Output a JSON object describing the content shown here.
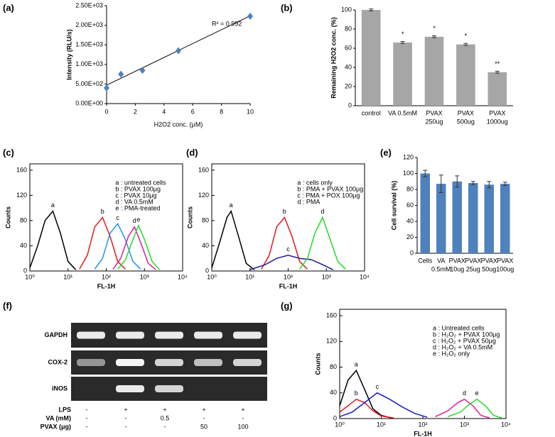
{
  "chart_data": [
    {
      "panel": "(a)",
      "type": "scatter",
      "x_label": "H2O2 conc. (μM)",
      "y_label": "Intensity (RLU/s)",
      "annotation": "R² = 0.992",
      "color": "#4f81bd",
      "x": [
        0,
        1,
        2.5,
        5,
        10
      ],
      "values": [
        400,
        750,
        850,
        1350,
        2230
      ],
      "trendline": {
        "x": [
          0,
          10
        ],
        "values": [
          470,
          2240
        ]
      },
      "xlim": [
        0,
        10
      ],
      "ylim": [
        0,
        2500
      ],
      "xticks": [
        0,
        2,
        4,
        6,
        8,
        10
      ],
      "yticks": [
        {
          "value": 0,
          "label": "0.00E+00"
        },
        {
          "value": 500,
          "label": "5.00E+02"
        },
        {
          "value": 1000,
          "label": "1.00E+03"
        },
        {
          "value": 1500,
          "label": "1.50E+03"
        },
        {
          "value": 2000,
          "label": "2.00E+03"
        },
        {
          "value": 2500,
          "label": "2.50E+03"
        }
      ]
    },
    {
      "panel": "(b)",
      "type": "bar",
      "y_label": "Remaining H2O2 conc. (%)",
      "color": "#a6a6a6",
      "categories": [
        [
          "control"
        ],
        [
          "VA 0.5mM"
        ],
        [
          "PVAX",
          "250ug"
        ],
        [
          "PVAX",
          "500ug"
        ],
        [
          "PVAX",
          "1000ug"
        ]
      ],
      "values": [
        100,
        66,
        72,
        64,
        35
      ],
      "errors": [
        1,
        1,
        1,
        1,
        1
      ],
      "significance": [
        null,
        "*",
        "*",
        "*",
        "**"
      ],
      "ylim": [
        0,
        100
      ],
      "yticks": [
        0,
        20,
        40,
        60,
        80,
        100
      ]
    },
    {
      "panel": "(c)",
      "type": "histogram",
      "x_label": "FL-1H",
      "y_label": "Counts",
      "log_x": true,
      "xlim": [
        1,
        10000
      ],
      "ylim": [
        0,
        170
      ],
      "yticks": [
        0,
        40,
        80,
        120,
        160
      ],
      "xticks": [
        {
          "value": 1,
          "label": "10⁰"
        },
        {
          "value": 10,
          "label": "10¹"
        },
        {
          "value": 100,
          "label": "10²"
        },
        {
          "value": 1000,
          "label": "10³"
        },
        {
          "value": 10000,
          "label": "10⁴"
        }
      ],
      "series": [
        {
          "label": "a",
          "name": "a : untreated cells",
          "color": "#000000",
          "x": [
            1,
            1.6,
            2.5,
            4,
            6.3,
            10,
            16
          ],
          "values": [
            5,
            40,
            80,
            95,
            60,
            15,
            2
          ]
        },
        {
          "label": "b",
          "name": "b : PVAX 100μg",
          "color": "#e41a1c",
          "x": [
            20,
            32,
            50,
            80,
            126,
            200,
            316
          ],
          "values": [
            3,
            25,
            70,
            85,
            55,
            15,
            3
          ]
        },
        {
          "label": "c",
          "name": "c : PVAX 10μg",
          "color": "#1e90ff",
          "x": [
            50,
            80,
            126,
            200,
            316,
            500,
            800
          ],
          "values": [
            3,
            20,
            60,
            75,
            50,
            15,
            3
          ]
        },
        {
          "label": "d",
          "name": "d : VA 0.5mM",
          "color": "#e0209a",
          "x": [
            150,
            240,
            380,
            550,
            800,
            1260,
            2000
          ],
          "values": [
            3,
            20,
            55,
            70,
            45,
            12,
            2
          ]
        },
        {
          "label": "e",
          "name": "e : PMA-treated",
          "color": "#22dd22",
          "x": [
            200,
            320,
            500,
            700,
            1000,
            1600,
            2500
          ],
          "values": [
            3,
            18,
            50,
            72,
            50,
            15,
            2
          ]
        }
      ]
    },
    {
      "panel": "(d)",
      "type": "histogram",
      "x_label": "FL-1H",
      "y_label": "Counts",
      "log_x": true,
      "xlim": [
        1,
        10000
      ],
      "ylim": [
        0,
        170
      ],
      "yticks": [
        0,
        40,
        80,
        120,
        160
      ],
      "xticks": [
        {
          "value": 1,
          "label": "10⁰"
        },
        {
          "value": 10,
          "label": "10¹"
        },
        {
          "value": 100,
          "label": "10²"
        },
        {
          "value": 1000,
          "label": "10³"
        },
        {
          "value": 10000,
          "label": "10⁴"
        }
      ],
      "series": [
        {
          "label": "a",
          "name": "a : cells only",
          "color": "#000000",
          "x": [
            1,
            1.6,
            2.5,
            3.2,
            5,
            8,
            13
          ],
          "values": [
            5,
            45,
            85,
            95,
            55,
            12,
            2
          ]
        },
        {
          "label": "b",
          "name": "b : PMA + PVAX 100μg",
          "color": "#e41a1c",
          "x": [
            20,
            32,
            50,
            80,
            126,
            200,
            316
          ],
          "values": [
            3,
            25,
            70,
            85,
            55,
            15,
            3
          ]
        },
        {
          "label": "c",
          "name": "c : PMA + POX 100μg",
          "color": "#1a1a9a",
          "x": [
            10,
            25,
            50,
            100,
            200,
            400,
            800,
            1500
          ],
          "values": [
            2,
            10,
            20,
            25,
            20,
            18,
            10,
            2
          ]
        },
        {
          "label": "d",
          "name": "d : PMA",
          "color": "#22dd22",
          "x": [
            200,
            320,
            500,
            800,
            1260,
            2000,
            3200
          ],
          "values": [
            3,
            20,
            60,
            85,
            50,
            15,
            3
          ]
        }
      ]
    },
    {
      "panel": "(e)",
      "type": "bar",
      "y_label": "Cell survival (%)",
      "color": "#4f81bd",
      "categories": [
        [
          "Cells"
        ],
        [
          "VA",
          "0.5mM"
        ],
        [
          "PVAX",
          "10ug"
        ],
        [
          "PVAX",
          "25ug"
        ],
        [
          "PVAX",
          "50ug"
        ],
        [
          "PVAX",
          "100ug"
        ]
      ],
      "values": [
        100,
        87,
        90,
        88,
        86,
        87
      ],
      "errors": [
        4,
        11,
        7,
        2,
        4,
        2
      ],
      "ylim": [
        0,
        120
      ],
      "yticks": [
        0,
        20,
        40,
        60,
        80,
        100,
        120
      ]
    },
    {
      "panel": "(g)",
      "type": "histogram",
      "x_label": "FL-1H",
      "y_label": "Counts",
      "log_x": true,
      "xlim": [
        1,
        10000
      ],
      "ylim": [
        0,
        170
      ],
      "yticks": [
        0,
        40,
        80,
        120,
        160
      ],
      "xticks": [
        {
          "value": 1,
          "label": "10⁰"
        },
        {
          "value": 10,
          "label": "10¹"
        },
        {
          "value": 100,
          "label": "10²"
        },
        {
          "value": 1000,
          "label": "10³"
        },
        {
          "value": 10000,
          "label": "10⁴"
        }
      ],
      "series": [
        {
          "label": "a",
          "name": "a : Untreated cells",
          "color": "#000000",
          "x": [
            1,
            1.6,
            2.5,
            4,
            6.3,
            10,
            20
          ],
          "values": [
            20,
            60,
            75,
            45,
            15,
            5,
            0
          ]
        },
        {
          "label": "b",
          "name": "b : H₂O₂ + PVAX 100μg",
          "color": "#e41a1c",
          "x": [
            1,
            1.6,
            2.5,
            4,
            6.3,
            10,
            20
          ],
          "values": [
            10,
            20,
            30,
            25,
            12,
            4,
            1
          ]
        },
        {
          "label": "c",
          "name": "c : H₂O₂ + PVAX 50μg",
          "color": "#1a1acc",
          "x": [
            1,
            2,
            4,
            8,
            16,
            32,
            64,
            128
          ],
          "values": [
            3,
            10,
            25,
            40,
            30,
            18,
            8,
            2
          ]
        },
        {
          "label": "d",
          "name": "d : H₂O₂ + VA 0.5mM",
          "color": "#e0209a",
          "x": [
            200,
            400,
            700,
            1000,
            1600,
            2500,
            4000
          ],
          "values": [
            3,
            12,
            25,
            30,
            20,
            5,
            1
          ]
        },
        {
          "label": "e",
          "name": "e : H₂O₂ only",
          "color": "#22dd22",
          "x": [
            400,
            800,
            1300,
            2000,
            3200,
            5000,
            8000
          ],
          "values": [
            3,
            10,
            22,
            30,
            20,
            5,
            1
          ]
        }
      ]
    }
  ],
  "gel": {
    "panel": "(f)",
    "bands": [
      "GAPDH",
      "COX-2",
      "iNOS"
    ],
    "treatments": [
      {
        "name": "LPS",
        "values": [
          "-",
          "+",
          "+",
          "+",
          "+"
        ]
      },
      {
        "name": "VA (mM)",
        "values": [
          "-",
          "-",
          "0.5",
          "-",
          "-"
        ]
      },
      {
        "name": "PVAX (μg)",
        "values": [
          "-",
          "-",
          "-",
          "50",
          "100"
        ]
      }
    ]
  }
}
